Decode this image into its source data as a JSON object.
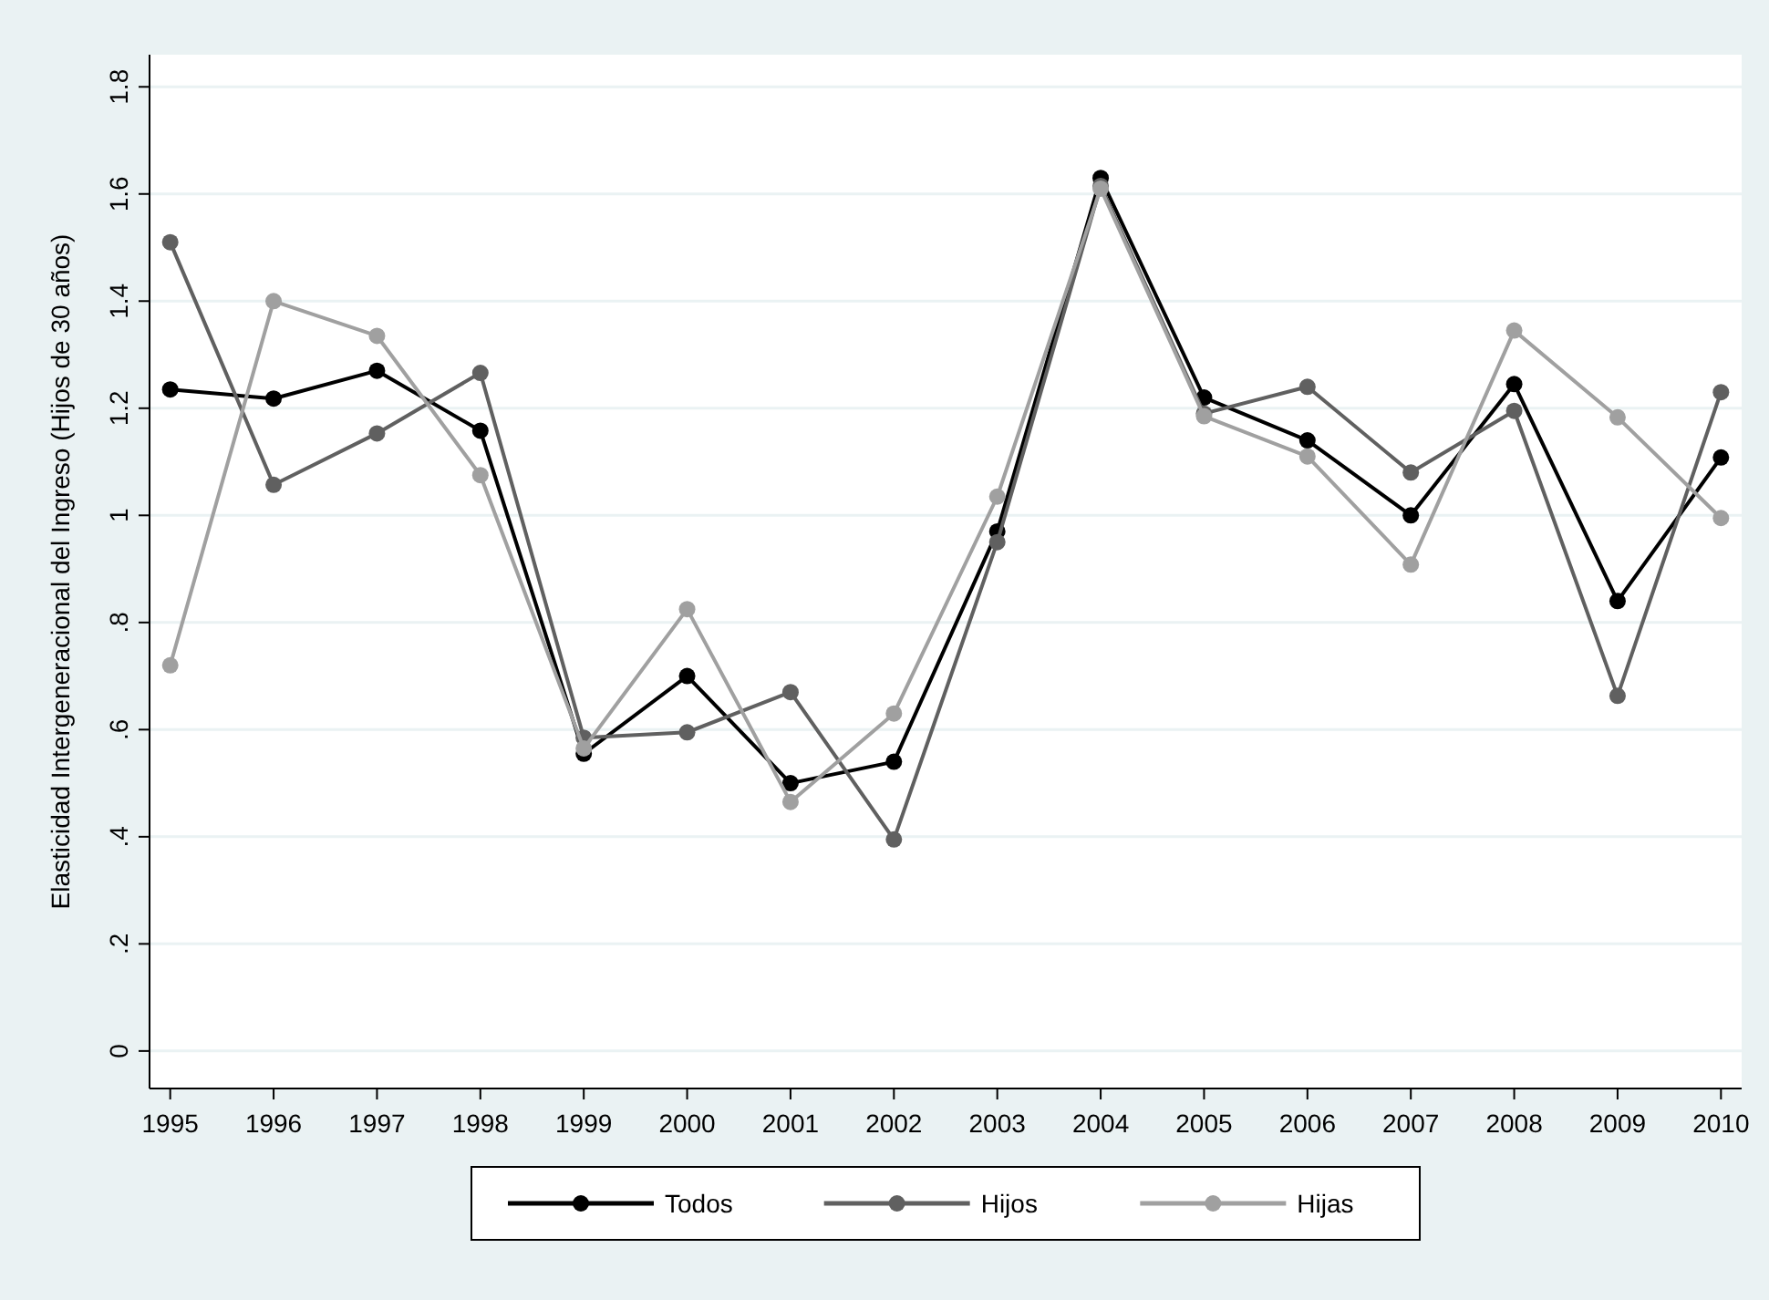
{
  "chart_data": {
    "type": "line",
    "ylabel": "Elasticidad Intergeneracional del Ingreso (Hijos de 30 años)",
    "categories": [
      "1995",
      "1996",
      "1997",
      "1998",
      "1999",
      "2000",
      "2001",
      "2002",
      "2003",
      "2004",
      "2005",
      "2006",
      "2007",
      "2008",
      "2009",
      "2010"
    ],
    "series": [
      {
        "name": "Todos",
        "color": "#000000",
        "values": [
          1.235,
          1.218,
          1.27,
          1.158,
          0.555,
          0.7,
          0.5,
          0.54,
          0.97,
          1.63,
          1.22,
          1.14,
          1.0,
          1.245,
          0.84,
          1.108
        ]
      },
      {
        "name": "Hijos",
        "color": "#606060",
        "values": [
          1.51,
          1.057,
          1.153,
          1.266,
          0.585,
          0.595,
          0.67,
          0.395,
          0.95,
          1.615,
          1.19,
          1.24,
          1.08,
          1.195,
          0.663,
          1.23
        ]
      },
      {
        "name": "Hijas",
        "color": "#a0a0a0",
        "values": [
          0.72,
          1.4,
          1.335,
          1.075,
          0.565,
          0.825,
          0.465,
          0.63,
          1.035,
          1.61,
          1.185,
          1.11,
          0.908,
          1.345,
          1.183,
          0.995
        ]
      }
    ],
    "ylim": [
      -0.07,
      1.86
    ],
    "yticks": [
      0,
      {
        "value": 0.2,
        "label": ".2"
      },
      {
        "value": 0.4,
        "label": ".4"
      },
      {
        "value": 0.6,
        "label": ".6"
      },
      {
        "value": 0.8,
        "label": ".8"
      },
      1,
      {
        "value": 1.2,
        "label": "1.2"
      },
      {
        "value": 1.4,
        "label": "1.4"
      },
      {
        "value": 1.6,
        "label": "1.6"
      },
      {
        "value": 1.8,
        "label": "1.8"
      }
    ],
    "grid": "y",
    "legend": "bottom",
    "marker": "circle",
    "line_style": "solid"
  }
}
